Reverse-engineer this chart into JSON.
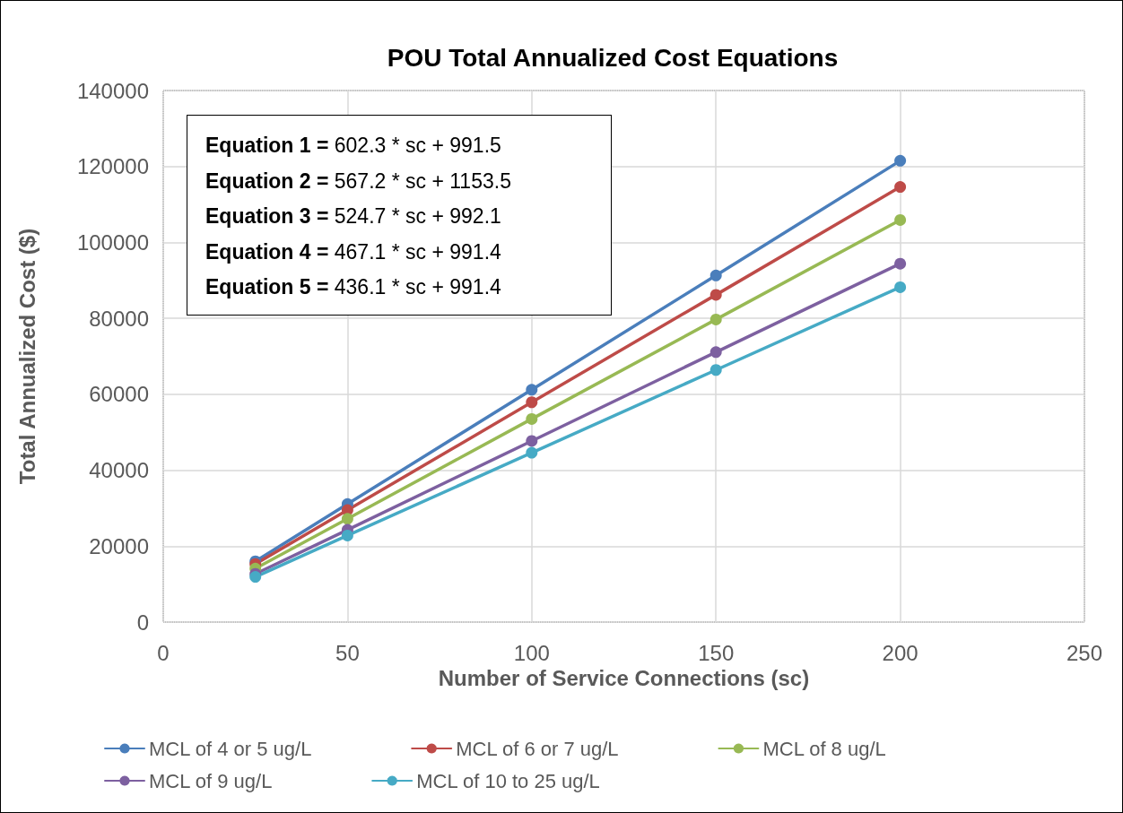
{
  "chart_data": {
    "type": "line",
    "title": "POU Total Annualized Cost Equations",
    "xlabel": "Number of Service Connections (sc)",
    "ylabel": "Total Annualized Cost ($)",
    "x": [
      25,
      50,
      100,
      150,
      200
    ],
    "series": [
      {
        "name": "MCL of 4 or 5 ug/L",
        "color": "#4a7ebb",
        "values": [
          16000,
          31100,
          61200,
          91300,
          121500
        ]
      },
      {
        "name": "MCL of 6 or 7 ug/L",
        "color": "#be4b48",
        "values": [
          15300,
          29500,
          57900,
          86200,
          114600
        ]
      },
      {
        "name": "MCL of 8 ug/L",
        "color": "#98b954",
        "values": [
          14100,
          27200,
          53500,
          79700,
          105900
        ]
      },
      {
        "name": "MCL of 9 ug/L",
        "color": "#7d60a0",
        "values": [
          12700,
          24300,
          47700,
          71100,
          94400
        ]
      },
      {
        "name": "MCL of 10 to 25 ug/L",
        "color": "#46aac5",
        "values": [
          11900,
          22800,
          44600,
          66400,
          88200
        ]
      }
    ],
    "annotations": [
      "Equation 1 = 602.3 * sc + 991.5",
      "Equation 2 = 567.2 * sc + 1153.5",
      "Equation 3 = 524.7 * sc + 992.1",
      "Equation 4 = 467.1 * sc + 991.4",
      "Equation 5 = 436.1 * sc + 991.4"
    ],
    "xlim": [
      0,
      250
    ],
    "xticks": [
      0,
      50,
      100,
      150,
      200,
      250
    ],
    "ylim": [
      0,
      140000
    ],
    "yticks": [
      0,
      20000,
      40000,
      60000,
      80000,
      100000,
      120000,
      140000
    ],
    "grid": true,
    "legend": "bottom",
    "marker": "circle",
    "line_style": "solid"
  }
}
